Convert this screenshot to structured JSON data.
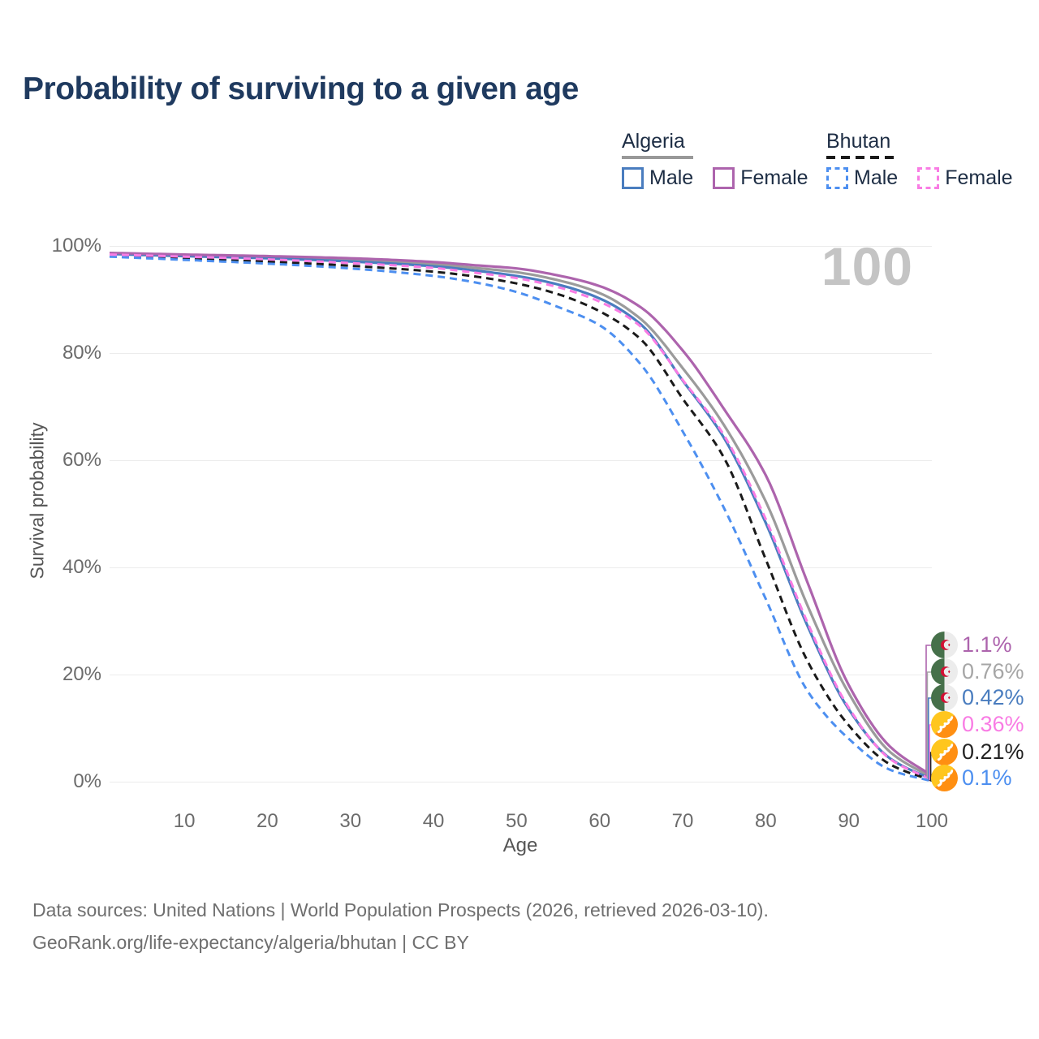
{
  "title": "Probability of surviving to a given age",
  "watermark_age": "100",
  "legend": {
    "groups": [
      {
        "country": "Algeria",
        "line_style": "solid",
        "line_color": "#999999",
        "items": [
          {
            "label": "Male",
            "color": "#4a7dbf"
          },
          {
            "label": "Female",
            "color": "#ad64ad"
          }
        ]
      },
      {
        "country": "Bhutan",
        "line_style": "dashed",
        "line_color": "#1a1a1a",
        "items": [
          {
            "label": "Male",
            "color": "#4d8ff0"
          },
          {
            "label": "Female",
            "color": "#f97ce4"
          }
        ]
      }
    ]
  },
  "axes": {
    "y_title": "Survival probability",
    "x_title": "Age",
    "y_ticks": [
      {
        "value": 0,
        "label": "0%"
      },
      {
        "value": 20,
        "label": "20%"
      },
      {
        "value": 40,
        "label": "40%"
      },
      {
        "value": 60,
        "label": "60%"
      },
      {
        "value": 80,
        "label": "80%"
      },
      {
        "value": 100,
        "label": "100%"
      }
    ],
    "x_ticks": [
      {
        "value": 10,
        "label": "10"
      },
      {
        "value": 20,
        "label": "20"
      },
      {
        "value": 30,
        "label": "30"
      },
      {
        "value": 40,
        "label": "40"
      },
      {
        "value": 50,
        "label": "50"
      },
      {
        "value": 60,
        "label": "60"
      },
      {
        "value": 70,
        "label": "70"
      },
      {
        "value": 80,
        "label": "80"
      },
      {
        "value": 90,
        "label": "90"
      },
      {
        "value": 100,
        "label": "100"
      }
    ],
    "x_range": [
      1,
      100
    ],
    "y_range": [
      0,
      100
    ],
    "grid": "horizontal-only"
  },
  "chart_data": {
    "type": "line",
    "x_ages": [
      1,
      10,
      20,
      30,
      40,
      45,
      50,
      55,
      60,
      65,
      70,
      75,
      80,
      85,
      90,
      95,
      100
    ],
    "series": [
      {
        "name": "Algeria Both sexes",
        "country": "Algeria",
        "sex": "Both",
        "color": "#9b9b9b",
        "dashed": false,
        "values": [
          98.6,
          98.3,
          97.9,
          97.4,
          96.6,
          95.9,
          95.1,
          93.6,
          91.2,
          86.3,
          77.2,
          66.5,
          52.3,
          33.0,
          16.5,
          5.5,
          0.76
        ],
        "end_label": "0.76%"
      },
      {
        "name": "Algeria Male",
        "country": "Algeria",
        "sex": "Male",
        "color": "#4a7dbf",
        "dashed": false,
        "values": [
          98.5,
          98.1,
          97.7,
          97.1,
          96.2,
          95.4,
          94.4,
          92.8,
          90.2,
          85.3,
          74.9,
          64.1,
          48.3,
          29.2,
          13.5,
          4.3,
          0.42
        ],
        "end_label": "0.42%"
      },
      {
        "name": "Algeria Female",
        "country": "Algeria",
        "sex": "Female",
        "color": "#ad64ad",
        "dashed": false,
        "values": [
          98.7,
          98.4,
          98.1,
          97.7,
          97.0,
          96.4,
          95.8,
          94.5,
          92.5,
          88.5,
          80.5,
          69.5,
          57.2,
          37.3,
          18.0,
          6.5,
          1.1
        ],
        "end_label": "1.1%"
      },
      {
        "name": "Bhutan Both sexes",
        "country": "Bhutan",
        "sex": "Both",
        "color": "#1a1a1a",
        "dashed": true,
        "values": [
          98.2,
          97.7,
          97.1,
          96.3,
          95.2,
          94.3,
          93.0,
          91.0,
          87.8,
          82.5,
          71.5,
          60.4,
          41.5,
          22.6,
          10.5,
          3.2,
          0.21
        ],
        "end_label": "0.21%"
      },
      {
        "name": "Bhutan Male",
        "country": "Bhutan",
        "sex": "Male",
        "color": "#4d8ff0",
        "dashed": true,
        "values": [
          98.0,
          97.4,
          96.7,
          95.8,
          94.4,
          93.2,
          91.4,
          88.6,
          85.2,
          77.8,
          65.4,
          51.0,
          34.1,
          17.0,
          8.0,
          2.2,
          0.1
        ],
        "end_label": "0.1%"
      },
      {
        "name": "Bhutan Female",
        "country": "Bhutan",
        "sex": "Female",
        "color": "#f97ce4",
        "dashed": true,
        "values": [
          98.4,
          98.0,
          97.5,
          96.8,
          95.9,
          95.0,
          94.0,
          92.3,
          89.6,
          84.9,
          75.0,
          64.6,
          49.0,
          29.8,
          13.8,
          4.2,
          0.36
        ],
        "end_label": "0.36%"
      }
    ],
    "end_label_rows": [
      {
        "series": "Algeria Female",
        "flag": "algeria",
        "text": "1.1%",
        "color": "#ad64ad"
      },
      {
        "series": "Algeria Both sexes",
        "flag": "algeria",
        "text": "0.76%",
        "color": "#a6a6a6"
      },
      {
        "series": "Algeria Male",
        "flag": "algeria",
        "text": "0.42%",
        "color": "#4a7dbf"
      },
      {
        "series": "Bhutan Female",
        "flag": "bhutan",
        "text": "0.36%",
        "color": "#f97ce4"
      },
      {
        "series": "Bhutan Both sexes",
        "flag": "bhutan",
        "text": "0.21%",
        "color": "#222222"
      },
      {
        "series": "Bhutan Male",
        "flag": "bhutan",
        "text": "0.1%",
        "color": "#4d8ff0"
      }
    ]
  },
  "footer": {
    "line1": "Data sources: United Nations | World Population Prospects (2026, retrieved 2026-03-10).",
    "line2": "GeoRank.org/life-expectancy/algeria/bhutan | CC BY"
  }
}
